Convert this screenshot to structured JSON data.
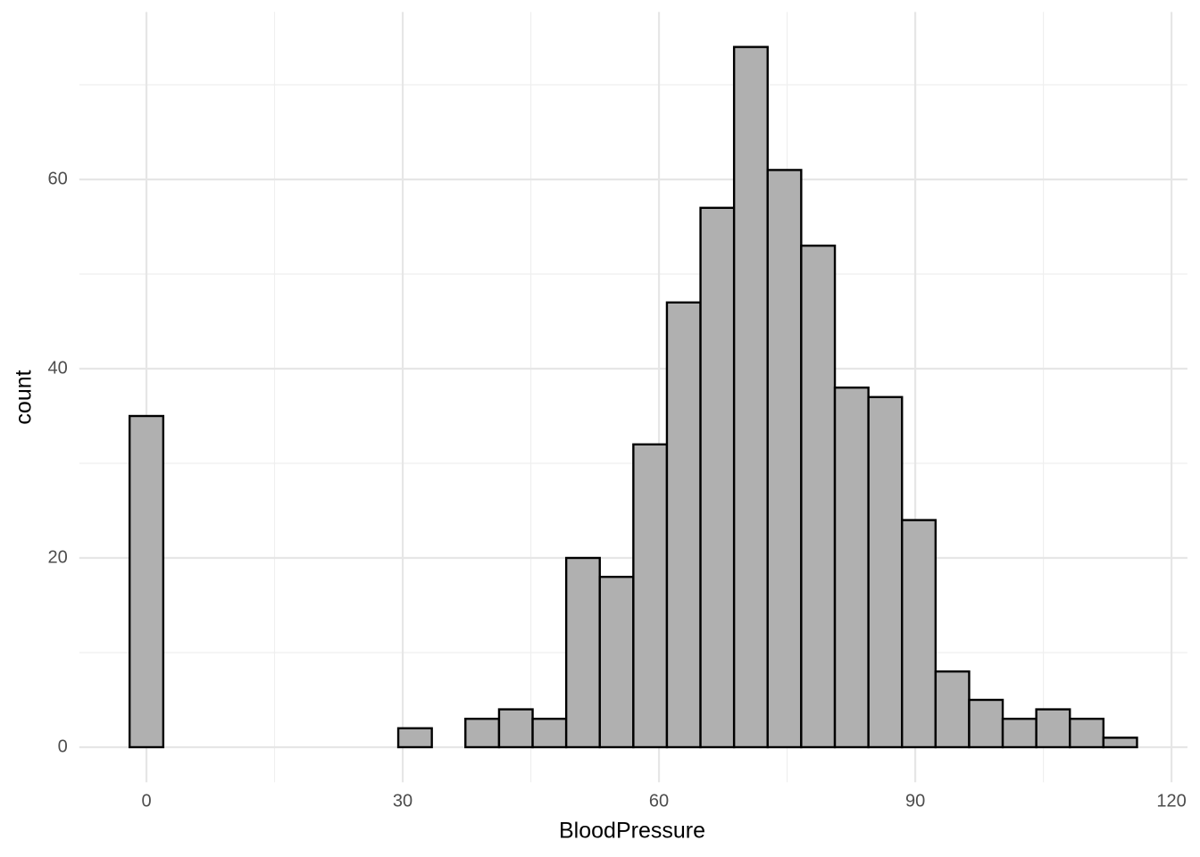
{
  "chart_data": {
    "type": "histogram",
    "x_label": "BloodPressure",
    "y_label": "count",
    "bins": [
      -1.97,
      1.97,
      5.9,
      9.83,
      13.76,
      17.69,
      21.62,
      25.55,
      29.48,
      33.41,
      37.34,
      41.28,
      45.21,
      49.14,
      53.07,
      57.0,
      60.93,
      64.86,
      68.79,
      72.72,
      76.65,
      80.59,
      84.52,
      88.45,
      92.38,
      96.31,
      100.24,
      104.17,
      108.1,
      112.03,
      115.96
    ],
    "values": [
      35,
      0,
      0,
      0,
      0,
      0,
      0,
      0,
      2,
      0,
      3,
      4,
      3,
      20,
      18,
      32,
      47,
      57,
      74,
      61,
      53,
      38,
      37,
      24,
      8,
      5,
      3,
      4,
      3,
      1
    ],
    "color": "#b0b0b0",
    "edge_color": "#000000",
    "xlim": [
      -7.86,
      121.86
    ],
    "xticks": [
      0,
      30,
      60,
      90,
      120
    ],
    "ylim": [
      -3.7,
      77.7
    ],
    "yticks": [
      0,
      20,
      40,
      60
    ],
    "grid": true
  }
}
